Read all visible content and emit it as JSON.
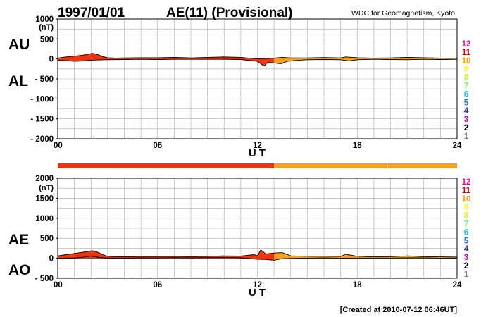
{
  "header": {
    "date": "1997/01/01",
    "title": "AE(11) (Provisional)",
    "source": "WDC for Geomagnetism, Kyoto",
    "created": "[Created at 2010-07-12 06:46UT]"
  },
  "colors": {
    "station_count_scale": [
      "#c8c8c8",
      "#808080",
      "#000000",
      "#cc00cc",
      "#3333cc",
      "#2277ff",
      "#00ccff",
      "#66ff66",
      "#ccff00",
      "#ffff00",
      "#ff9900",
      "#dd0000",
      "#ff0088"
    ],
    "fill_11": "#ee3311",
    "fill_10": "#f5a020",
    "line": "#000000",
    "grid": "#aaaaaa"
  },
  "chart_data": [
    {
      "type": "area",
      "panel": "AU / AL",
      "label_upper": "AU",
      "label_lower": "AL",
      "unit_label": "(nT)",
      "xlabel": "U T",
      "xlim": [
        0,
        24
      ],
      "ylim": [
        -2000,
        1000
      ],
      "x_ticks": [
        "00",
        "06",
        "12",
        "18",
        "24"
      ],
      "y_ticks": [
        "1000",
        "500",
        "0",
        "- 500",
        "- 1000",
        "- 1500",
        "- 2000"
      ],
      "y_tick_values": [
        1000,
        500,
        0,
        -500,
        -1000,
        -1500,
        -2000
      ],
      "grid": true,
      "station_count_legend": [
        "12",
        "11",
        "10",
        "9",
        "8",
        "7",
        "6",
        "5",
        "4",
        "3",
        "2",
        "1"
      ],
      "station_count_change_ut": 13,
      "series": [
        {
          "name": "AU",
          "x": [
            0,
            0.5,
            1,
            1.5,
            1.8,
            2.1,
            2.4,
            2.7,
            3,
            3.5,
            4,
            5,
            6,
            7,
            8,
            9,
            10,
            11,
            12,
            12.5,
            13,
            13.5,
            14,
            15,
            16,
            17,
            17.3,
            18,
            19,
            20,
            21,
            22,
            23,
            24
          ],
          "values": [
            20,
            50,
            70,
            95,
            120,
            140,
            110,
            60,
            30,
            20,
            25,
            30,
            30,
            40,
            25,
            40,
            50,
            40,
            5,
            10,
            20,
            40,
            25,
            25,
            35,
            25,
            50,
            30,
            20,
            25,
            40,
            30,
            20,
            20
          ]
        },
        {
          "name": "AL",
          "x": [
            0,
            0.5,
            1,
            1.5,
            2,
            2.5,
            3,
            4,
            5,
            6,
            7,
            8,
            9,
            10,
            11,
            12,
            12.2,
            12.4,
            12.6,
            13,
            13.4,
            13.8,
            14.5,
            15,
            16,
            17,
            17.5,
            18,
            19,
            20,
            21,
            22,
            23,
            24
          ],
          "values": [
            -30,
            -40,
            -60,
            -50,
            -30,
            -25,
            -20,
            -15,
            -10,
            -15,
            -10,
            -10,
            -10,
            -10,
            -15,
            -60,
            -120,
            -180,
            -90,
            -100,
            -120,
            -60,
            -30,
            -20,
            -15,
            -20,
            -50,
            -20,
            -10,
            -15,
            -20,
            -10,
            -15,
            -10
          ]
        }
      ]
    },
    {
      "type": "area",
      "panel": "AE / AO",
      "label_upper": "AE",
      "label_lower": "AO",
      "unit_label": "(nT)",
      "xlabel": "U T",
      "xlim": [
        0,
        24
      ],
      "ylim": [
        -500,
        2000
      ],
      "x_ticks": [
        "00",
        "06",
        "12",
        "18",
        "24"
      ],
      "y_ticks": [
        "2000",
        "1500",
        "1000",
        "500",
        "0",
        "- 500"
      ],
      "y_tick_values": [
        2000,
        1500,
        1000,
        500,
        0,
        -500
      ],
      "grid": true,
      "station_count_legend": [
        "12",
        "11",
        "10",
        "9",
        "8",
        "7",
        "6",
        "5",
        "4",
        "3",
        "2",
        "1"
      ],
      "station_count_change_ut": 13,
      "series": [
        {
          "name": "AE",
          "x": [
            0,
            0.5,
            1,
            1.5,
            1.8,
            2.1,
            2.4,
            2.7,
            3,
            3.5,
            4,
            5,
            6,
            7,
            8,
            9,
            10,
            11,
            11.8,
            12,
            12.2,
            12.5,
            13,
            13.5,
            14,
            15,
            16,
            17,
            17.3,
            18,
            19,
            20,
            21,
            22,
            23,
            24
          ],
          "values": [
            60,
            90,
            120,
            150,
            170,
            190,
            150,
            90,
            50,
            40,
            40,
            45,
            45,
            50,
            40,
            50,
            60,
            55,
            90,
            60,
            210,
            110,
            130,
            140,
            60,
            50,
            50,
            45,
            100,
            50,
            35,
            40,
            60,
            40,
            35,
            30
          ]
        },
        {
          "name": "AO",
          "x": [
            0,
            0.5,
            1,
            1.5,
            2,
            2.5,
            3,
            4,
            5,
            6,
            7,
            8,
            9,
            10,
            11,
            12,
            12.5,
            13,
            13.5,
            14,
            15,
            16,
            17,
            18,
            19,
            20,
            21,
            22,
            23,
            24
          ],
          "values": [
            -5,
            5,
            5,
            25,
            55,
            20,
            5,
            5,
            10,
            8,
            15,
            8,
            15,
            20,
            12,
            -25,
            -30,
            -50,
            -10,
            -3,
            3,
            10,
            3,
            5,
            5,
            5,
            10,
            10,
            3,
            5
          ]
        }
      ]
    }
  ]
}
